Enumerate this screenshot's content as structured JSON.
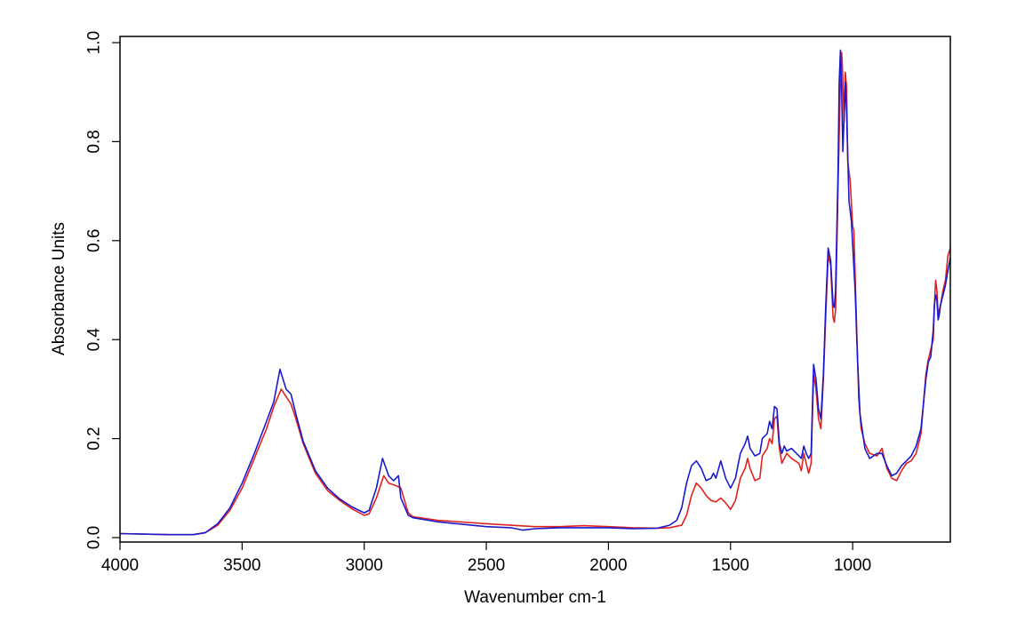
{
  "chart_data": {
    "type": "line",
    "title": "",
    "xlabel": "Wavenumber cm-1",
    "ylabel": "Absorbance Units",
    "xlim": [
      4000,
      600
    ],
    "ylim": [
      0.0,
      1.0
    ],
    "x_reversed": true,
    "grid": false,
    "legend": "none",
    "x_ticks": [
      4000,
      3500,
      3000,
      2500,
      2000,
      1500,
      1000
    ],
    "x_tick_labels": [
      "4000",
      "3500",
      "3000",
      "2500",
      "2000",
      "1500",
      "1000"
    ],
    "y_ticks": [
      0.0,
      0.2,
      0.4,
      0.6,
      0.8,
      1.0
    ],
    "y_tick_labels": [
      "0.0",
      "0.2",
      "0.4",
      "0.6",
      "0.8",
      "1.0"
    ],
    "series": [
      {
        "color": "#dd2222",
        "points": [
          [
            4000,
            0.008
          ],
          [
            3800,
            0.006
          ],
          [
            3700,
            0.006
          ],
          [
            3650,
            0.01
          ],
          [
            3600,
            0.025
          ],
          [
            3550,
            0.055
          ],
          [
            3500,
            0.1
          ],
          [
            3450,
            0.16
          ],
          [
            3400,
            0.22
          ],
          [
            3370,
            0.265
          ],
          [
            3340,
            0.3
          ],
          [
            3320,
            0.285
          ],
          [
            3300,
            0.27
          ],
          [
            3280,
            0.24
          ],
          [
            3250,
            0.19
          ],
          [
            3200,
            0.13
          ],
          [
            3150,
            0.095
          ],
          [
            3100,
            0.075
          ],
          [
            3050,
            0.058
          ],
          [
            3000,
            0.045
          ],
          [
            2980,
            0.048
          ],
          [
            2950,
            0.08
          ],
          [
            2920,
            0.125
          ],
          [
            2900,
            0.11
          ],
          [
            2870,
            0.105
          ],
          [
            2850,
            0.1
          ],
          [
            2820,
            0.05
          ],
          [
            2800,
            0.042
          ],
          [
            2700,
            0.035
          ],
          [
            2500,
            0.028
          ],
          [
            2300,
            0.022
          ],
          [
            2200,
            0.022
          ],
          [
            2100,
            0.024
          ],
          [
            2000,
            0.022
          ],
          [
            1900,
            0.02
          ],
          [
            1800,
            0.019
          ],
          [
            1750,
            0.02
          ],
          [
            1700,
            0.025
          ],
          [
            1680,
            0.045
          ],
          [
            1660,
            0.085
          ],
          [
            1640,
            0.11
          ],
          [
            1620,
            0.1
          ],
          [
            1600,
            0.085
          ],
          [
            1580,
            0.075
          ],
          [
            1560,
            0.072
          ],
          [
            1540,
            0.08
          ],
          [
            1520,
            0.07
          ],
          [
            1500,
            0.057
          ],
          [
            1480,
            0.075
          ],
          [
            1460,
            0.12
          ],
          [
            1440,
            0.14
          ],
          [
            1430,
            0.16
          ],
          [
            1420,
            0.14
          ],
          [
            1400,
            0.115
          ],
          [
            1380,
            0.12
          ],
          [
            1370,
            0.165
          ],
          [
            1350,
            0.18
          ],
          [
            1340,
            0.2
          ],
          [
            1330,
            0.19
          ],
          [
            1320,
            0.24
          ],
          [
            1310,
            0.245
          ],
          [
            1300,
            0.18
          ],
          [
            1290,
            0.15
          ],
          [
            1280,
            0.16
          ],
          [
            1270,
            0.17
          ],
          [
            1250,
            0.16
          ],
          [
            1220,
            0.15
          ],
          [
            1210,
            0.135
          ],
          [
            1200,
            0.17
          ],
          [
            1190,
            0.15
          ],
          [
            1180,
            0.13
          ],
          [
            1170,
            0.15
          ],
          [
            1160,
            0.33
          ],
          [
            1150,
            0.3
          ],
          [
            1140,
            0.24
          ],
          [
            1130,
            0.22
          ],
          [
            1120,
            0.32
          ],
          [
            1110,
            0.45
          ],
          [
            1100,
            0.57
          ],
          [
            1090,
            0.55
          ],
          [
            1080,
            0.445
          ],
          [
            1075,
            0.435
          ],
          [
            1070,
            0.46
          ],
          [
            1060,
            0.7
          ],
          [
            1050,
            0.93
          ],
          [
            1045,
            0.98
          ],
          [
            1040,
            0.93
          ],
          [
            1035,
            0.84
          ],
          [
            1030,
            0.94
          ],
          [
            1025,
            0.91
          ],
          [
            1020,
            0.76
          ],
          [
            1010,
            0.72
          ],
          [
            1000,
            0.63
          ],
          [
            995,
            0.62
          ],
          [
            985,
            0.45
          ],
          [
            975,
            0.28
          ],
          [
            965,
            0.22
          ],
          [
            950,
            0.19
          ],
          [
            930,
            0.17
          ],
          [
            900,
            0.165
          ],
          [
            880,
            0.18
          ],
          [
            860,
            0.14
          ],
          [
            840,
            0.12
          ],
          [
            820,
            0.115
          ],
          [
            800,
            0.135
          ],
          [
            780,
            0.15
          ],
          [
            760,
            0.155
          ],
          [
            740,
            0.17
          ],
          [
            720,
            0.21
          ],
          [
            700,
            0.33
          ],
          [
            690,
            0.36
          ],
          [
            680,
            0.38
          ],
          [
            670,
            0.4
          ],
          [
            665,
            0.47
          ],
          [
            660,
            0.52
          ],
          [
            655,
            0.5
          ],
          [
            650,
            0.45
          ],
          [
            645,
            0.46
          ],
          [
            640,
            0.47
          ],
          [
            630,
            0.5
          ],
          [
            620,
            0.52
          ],
          [
            610,
            0.57
          ],
          [
            600,
            0.585
          ]
        ]
      },
      {
        "color": "#1a1acc",
        "points": [
          [
            4000,
            0.008
          ],
          [
            3800,
            0.006
          ],
          [
            3700,
            0.006
          ],
          [
            3650,
            0.01
          ],
          [
            3600,
            0.028
          ],
          [
            3550,
            0.06
          ],
          [
            3500,
            0.11
          ],
          [
            3450,
            0.17
          ],
          [
            3400,
            0.235
          ],
          [
            3370,
            0.275
          ],
          [
            3345,
            0.34
          ],
          [
            3320,
            0.3
          ],
          [
            3300,
            0.29
          ],
          [
            3280,
            0.25
          ],
          [
            3250,
            0.195
          ],
          [
            3200,
            0.135
          ],
          [
            3150,
            0.1
          ],
          [
            3100,
            0.078
          ],
          [
            3050,
            0.062
          ],
          [
            3000,
            0.05
          ],
          [
            2980,
            0.055
          ],
          [
            2950,
            0.1
          ],
          [
            2925,
            0.16
          ],
          [
            2900,
            0.125
          ],
          [
            2880,
            0.115
          ],
          [
            2860,
            0.125
          ],
          [
            2850,
            0.08
          ],
          [
            2820,
            0.045
          ],
          [
            2800,
            0.04
          ],
          [
            2700,
            0.032
          ],
          [
            2500,
            0.022
          ],
          [
            2400,
            0.02
          ],
          [
            2350,
            0.015
          ],
          [
            2300,
            0.018
          ],
          [
            2200,
            0.02
          ],
          [
            2100,
            0.02
          ],
          [
            2000,
            0.02
          ],
          [
            1900,
            0.018
          ],
          [
            1800,
            0.019
          ],
          [
            1750,
            0.025
          ],
          [
            1720,
            0.035
          ],
          [
            1700,
            0.06
          ],
          [
            1680,
            0.11
          ],
          [
            1660,
            0.145
          ],
          [
            1640,
            0.155
          ],
          [
            1620,
            0.14
          ],
          [
            1600,
            0.115
          ],
          [
            1580,
            0.12
          ],
          [
            1570,
            0.13
          ],
          [
            1560,
            0.12
          ],
          [
            1540,
            0.155
          ],
          [
            1520,
            0.12
          ],
          [
            1500,
            0.1
          ],
          [
            1480,
            0.12
          ],
          [
            1460,
            0.17
          ],
          [
            1440,
            0.19
          ],
          [
            1430,
            0.205
          ],
          [
            1420,
            0.18
          ],
          [
            1400,
            0.165
          ],
          [
            1380,
            0.17
          ],
          [
            1370,
            0.2
          ],
          [
            1350,
            0.21
          ],
          [
            1340,
            0.235
          ],
          [
            1330,
            0.22
          ],
          [
            1320,
            0.265
          ],
          [
            1310,
            0.26
          ],
          [
            1300,
            0.19
          ],
          [
            1290,
            0.17
          ],
          [
            1280,
            0.185
          ],
          [
            1270,
            0.175
          ],
          [
            1250,
            0.18
          ],
          [
            1220,
            0.165
          ],
          [
            1210,
            0.16
          ],
          [
            1200,
            0.185
          ],
          [
            1190,
            0.17
          ],
          [
            1180,
            0.16
          ],
          [
            1170,
            0.17
          ],
          [
            1160,
            0.35
          ],
          [
            1150,
            0.32
          ],
          [
            1140,
            0.26
          ],
          [
            1130,
            0.24
          ],
          [
            1120,
            0.33
          ],
          [
            1110,
            0.47
          ],
          [
            1100,
            0.585
          ],
          [
            1090,
            0.56
          ],
          [
            1080,
            0.47
          ],
          [
            1075,
            0.465
          ],
          [
            1070,
            0.5
          ],
          [
            1060,
            0.73
          ],
          [
            1055,
            0.92
          ],
          [
            1050,
            0.985
          ],
          [
            1045,
            0.9
          ],
          [
            1040,
            0.78
          ],
          [
            1035,
            0.85
          ],
          [
            1030,
            0.92
          ],
          [
            1025,
            0.86
          ],
          [
            1015,
            0.68
          ],
          [
            1005,
            0.64
          ],
          [
            990,
            0.5
          ],
          [
            980,
            0.36
          ],
          [
            970,
            0.25
          ],
          [
            950,
            0.18
          ],
          [
            930,
            0.16
          ],
          [
            900,
            0.17
          ],
          [
            880,
            0.17
          ],
          [
            860,
            0.145
          ],
          [
            840,
            0.125
          ],
          [
            820,
            0.13
          ],
          [
            800,
            0.145
          ],
          [
            780,
            0.155
          ],
          [
            760,
            0.165
          ],
          [
            740,
            0.185
          ],
          [
            720,
            0.22
          ],
          [
            700,
            0.32
          ],
          [
            690,
            0.355
          ],
          [
            680,
            0.365
          ],
          [
            670,
            0.42
          ],
          [
            665,
            0.47
          ],
          [
            660,
            0.49
          ],
          [
            655,
            0.48
          ],
          [
            650,
            0.44
          ],
          [
            645,
            0.45
          ],
          [
            640,
            0.47
          ],
          [
            630,
            0.49
          ],
          [
            620,
            0.51
          ],
          [
            610,
            0.54
          ],
          [
            600,
            0.565
          ]
        ]
      }
    ]
  }
}
